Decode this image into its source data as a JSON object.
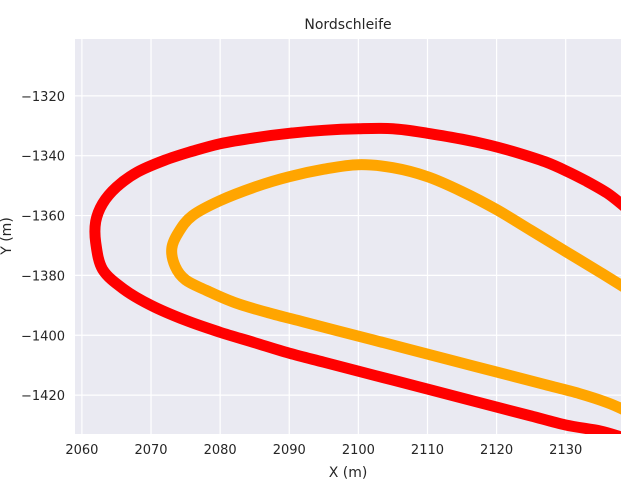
{
  "chart_data": {
    "type": "line",
    "title": "Nordschleife",
    "xlabel": "X (m)",
    "ylabel": "Y (m)",
    "xlim": [
      2059.0,
      2138.0
    ],
    "ylim": [
      -1433.0,
      -1301.0
    ],
    "x_ticks": [
      2060,
      2070,
      2080,
      2090,
      2100,
      2110,
      2120,
      2130
    ],
    "y_ticks": [
      -1320,
      -1340,
      -1360,
      -1380,
      -1400,
      -1420
    ],
    "x_tick_labels": [
      "2060",
      "2070",
      "2080",
      "2090",
      "2100",
      "2110",
      "2120",
      "2130"
    ],
    "y_tick_labels": [
      "−1320",
      "−1340",
      "−1360",
      "−1380",
      "−1400",
      "−1420"
    ],
    "grid": true,
    "legend": "none",
    "background_color": "#eaeaf2",
    "grid_color": "#ffffff",
    "series": [
      {
        "color": "#ff0000",
        "x": [
          2138.5,
          2136.0,
          2133.0,
          2130.0,
          2127.0,
          2123.0,
          2119.0,
          2115.0,
          2110.0,
          2105.0,
          2100.0,
          2095.0,
          2090.0,
          2085.0,
          2080.0,
          2076.0,
          2072.0,
          2068.0,
          2065.0,
          2063.0,
          2062.0,
          2062.0,
          2063.0,
          2066.0,
          2070.0,
          2075.0,
          2080.0,
          2085.0,
          2090.0,
          2095.0,
          2100.0,
          2105.0,
          2110.0,
          2115.0,
          2120.0,
          2125.0,
          2130.0,
          2135.0,
          2138.0
        ],
        "y": [
          -1357.0,
          -1352.5,
          -1348.5,
          -1345.0,
          -1342.0,
          -1339.0,
          -1336.5,
          -1334.5,
          -1332.5,
          -1331.0,
          -1331.0,
          -1331.5,
          -1332.5,
          -1334.0,
          -1336.0,
          -1338.5,
          -1341.5,
          -1345.5,
          -1350.5,
          -1356.0,
          -1362.0,
          -1369.0,
          -1378.0,
          -1384.5,
          -1390.0,
          -1395.0,
          -1399.0,
          -1402.5,
          -1406.0,
          -1409.0,
          -1412.0,
          -1415.0,
          -1418.0,
          -1421.0,
          -1424.0,
          -1427.0,
          -1430.0,
          -1432.0,
          -1434.0
        ]
      },
      {
        "color": "#ffa500",
        "x": [
          2138.5,
          2135.0,
          2130.0,
          2125.0,
          2120.0,
          2115.0,
          2110.0,
          2105.0,
          2100.0,
          2095.0,
          2090.0,
          2085.0,
          2080.0,
          2076.0,
          2074.0,
          2073.0,
          2073.5,
          2075.0,
          2078.0,
          2082.0,
          2087.0,
          2092.0,
          2097.0,
          2102.0,
          2107.0,
          2112.0,
          2117.0,
          2122.0,
          2127.0,
          2132.0,
          2136.0,
          2138.5
        ],
        "y": [
          -1384.0,
          -1379.0,
          -1372.0,
          -1365.0,
          -1358.0,
          -1352.0,
          -1347.0,
          -1344.0,
          -1343.0,
          -1344.5,
          -1347.0,
          -1350.5,
          -1355.0,
          -1360.0,
          -1365.5,
          -1371.0,
          -1377.0,
          -1381.5,
          -1385.0,
          -1389.0,
          -1392.5,
          -1395.5,
          -1398.5,
          -1401.5,
          -1404.5,
          -1407.5,
          -1410.5,
          -1413.5,
          -1416.5,
          -1419.5,
          -1422.5,
          -1425.0
        ]
      }
    ]
  }
}
